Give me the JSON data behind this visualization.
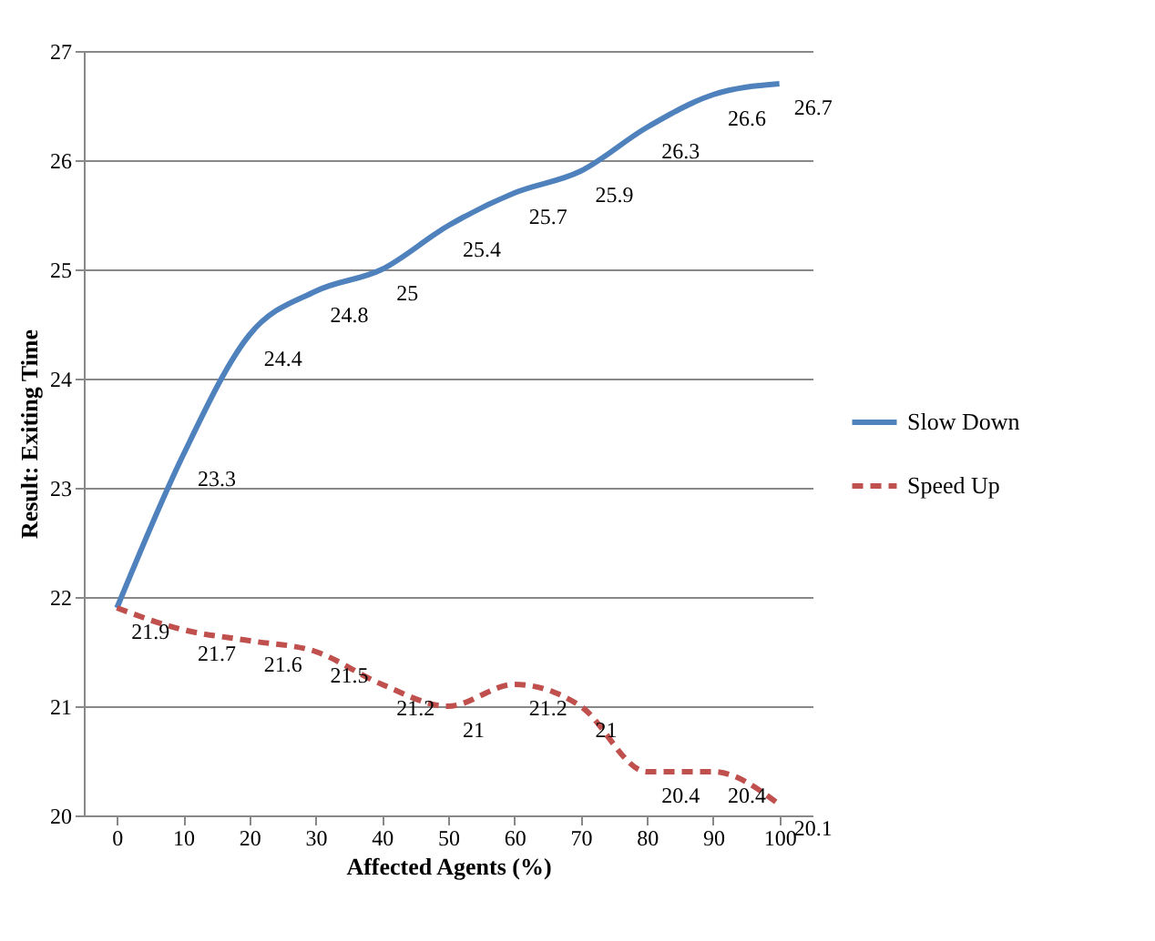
{
  "chart_data": {
    "type": "line",
    "xlabel": "Affected Agents (%)",
    "ylabel": "Result: Exiting  Time",
    "categories": [
      "0",
      "10",
      "20",
      "30",
      "40",
      "50",
      "60",
      "70",
      "80",
      "90",
      "100"
    ],
    "series": [
      {
        "name": "Slow Down",
        "color": "#4f81bd",
        "line_style": "solid",
        "values": [
          21.9,
          23.3,
          24.4,
          24.8,
          25,
          25.4,
          25.7,
          25.9,
          26.3,
          26.6,
          26.7
        ],
        "value_labels": [
          null,
          "23.3",
          "24.4",
          "24.8",
          "25",
          "25.4",
          "25.7",
          "25.9",
          "26.3",
          "26.6",
          "26.7"
        ]
      },
      {
        "name": "Speed Up",
        "color": "#c0504d",
        "line_style": "dashed",
        "values": [
          21.9,
          21.7,
          21.6,
          21.5,
          21.2,
          21,
          21.2,
          21,
          20.4,
          20.4,
          20.1
        ],
        "value_labels": [
          "21.9",
          "21.7",
          "21.6",
          "21.5",
          "21.2",
          "21",
          "21.2",
          "21",
          "20.4",
          "20.4",
          "20.1"
        ]
      }
    ],
    "ylim": [
      20,
      27
    ],
    "yticks": [
      20,
      21,
      22,
      23,
      24,
      25,
      26,
      27
    ],
    "grid": "y",
    "legend": "right"
  }
}
